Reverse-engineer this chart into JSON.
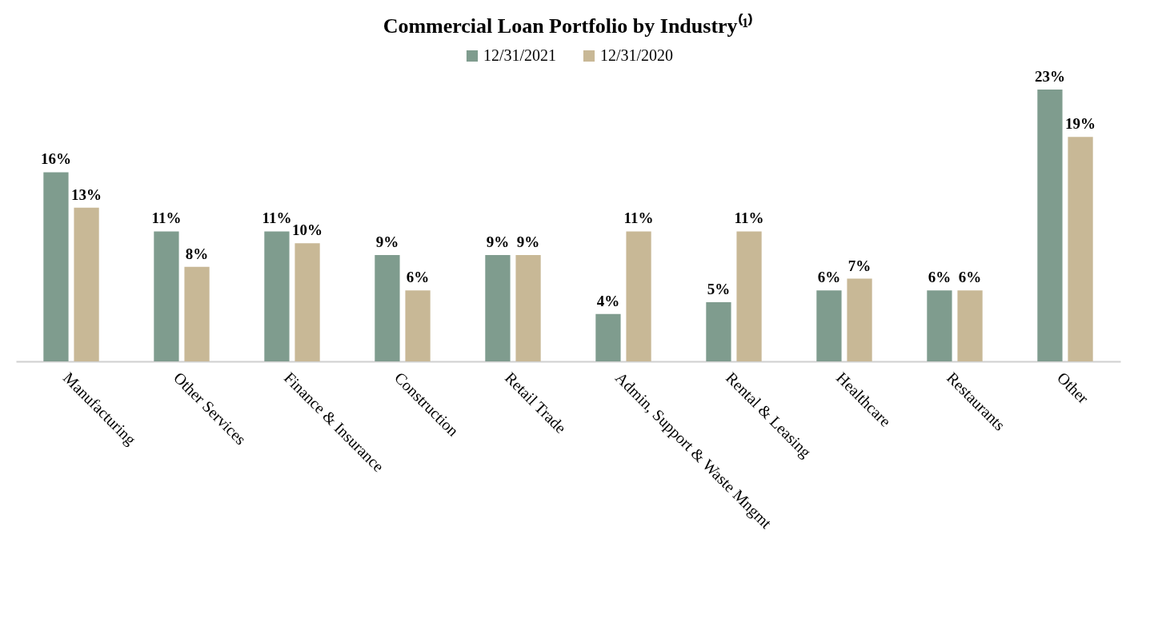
{
  "chart_data": {
    "type": "bar",
    "title": "Commercial Loan Portfolio by Industry⁽¹⁾",
    "categories": [
      "Manufacturing",
      "Other Services",
      "Finance & Insurance",
      "Construction",
      "Retail Trade",
      "Admin, Support & Waste Mngmt",
      "Rental & Leasing",
      "Healthcare",
      "Restaurants",
      "Other"
    ],
    "series": [
      {
        "name": "12/31/2021",
        "color": "#7f9c8e",
        "values": [
          16,
          11,
          11,
          9,
          9,
          4,
          5,
          6,
          6,
          23
        ],
        "value_labels": [
          "16%",
          "11%",
          "11%",
          "9%",
          "9%",
          "4%",
          "5%",
          "6%",
          "6%",
          "23%"
        ]
      },
      {
        "name": "12/31/2020",
        "color": "#c8b896",
        "values": [
          13,
          8,
          10,
          6,
          9,
          11,
          11,
          7,
          6,
          19
        ],
        "value_labels": [
          "13%",
          "8%",
          "10%",
          "6%",
          "9%",
          "11%",
          "11%",
          "7%",
          "6%",
          "19%"
        ]
      }
    ],
    "legend": "top",
    "grid": false
  }
}
